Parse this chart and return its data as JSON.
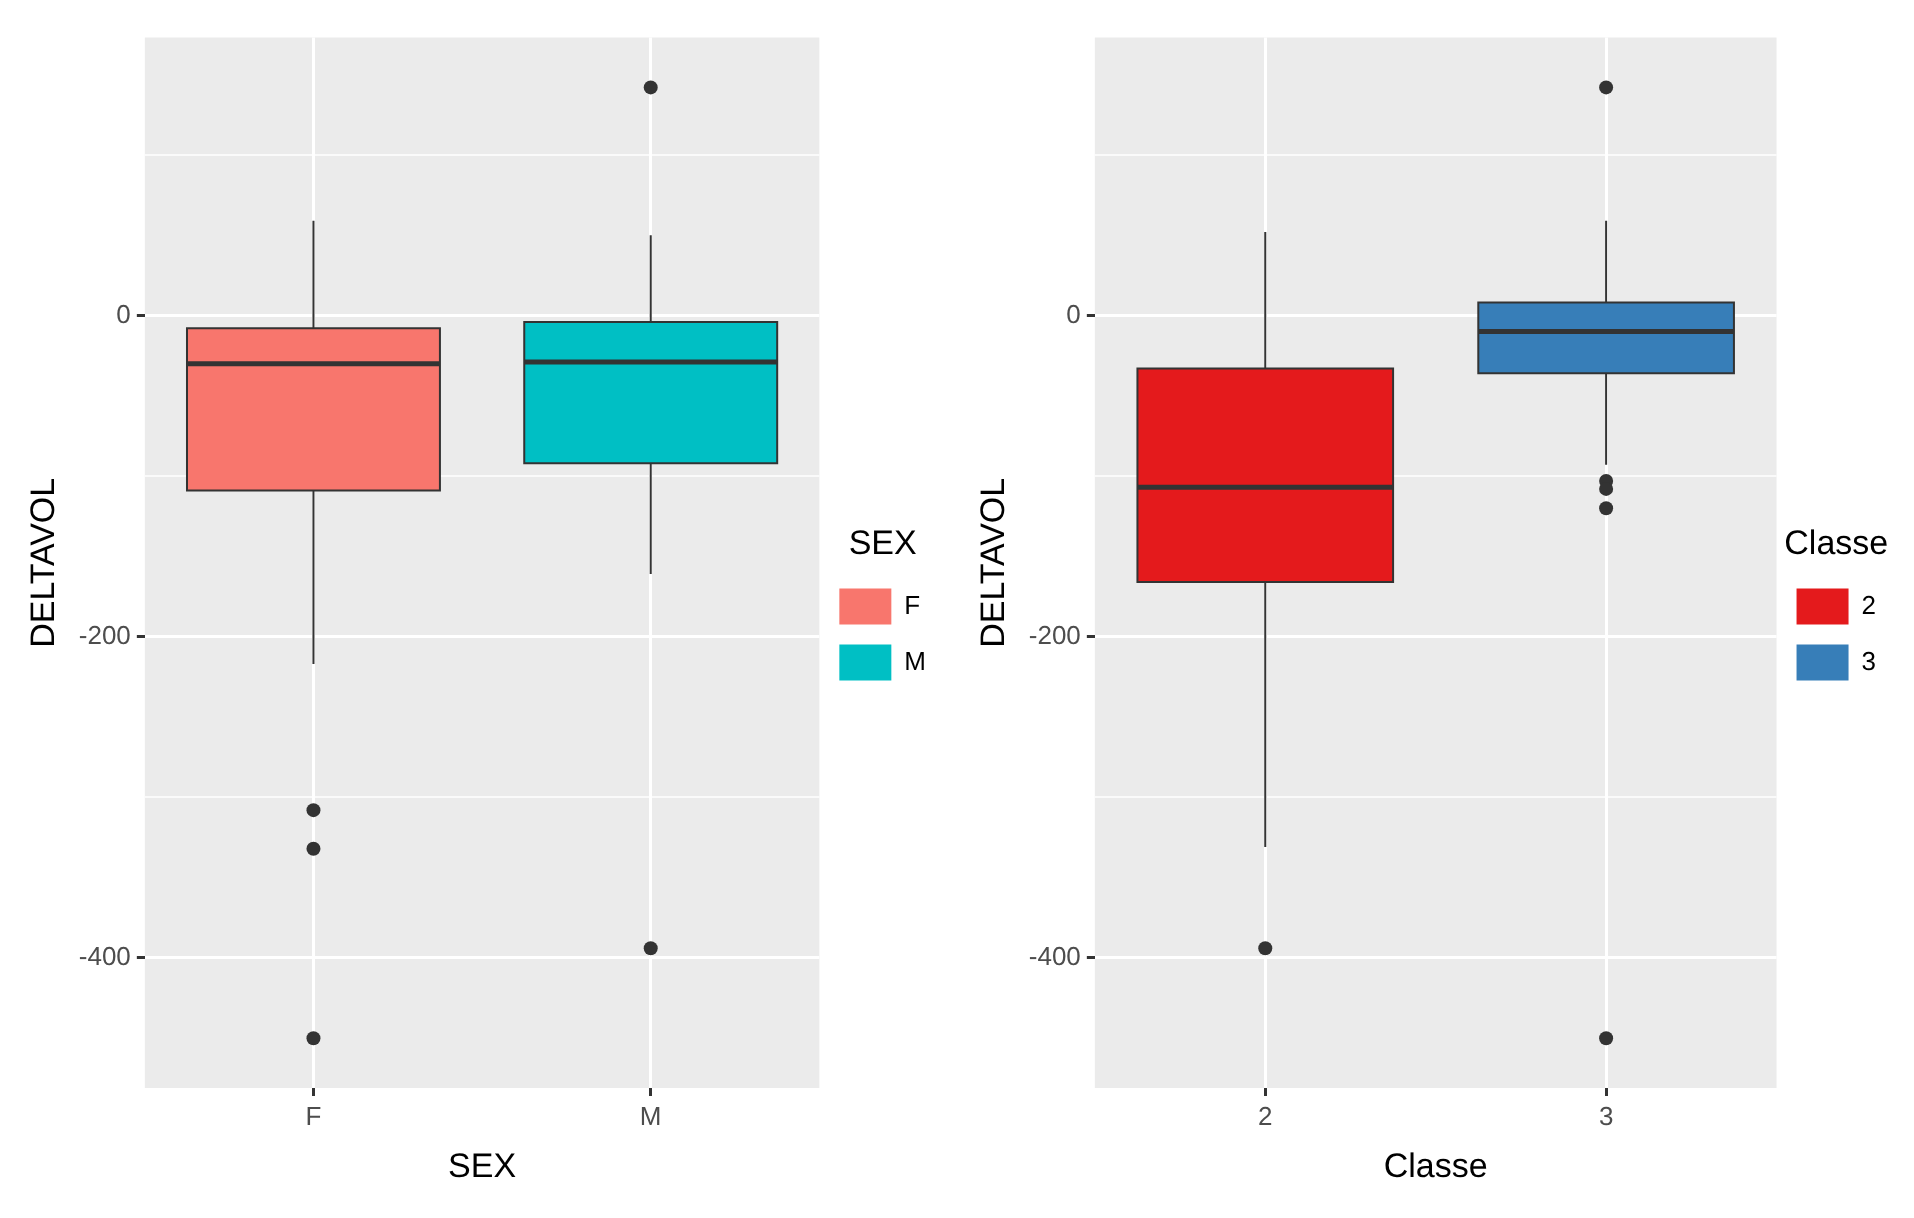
{
  "chart_data": [
    {
      "type": "box",
      "xlabel": "SEX",
      "ylabel": "DELTAVOL",
      "legend_title": "SEX",
      "categories": [
        "F",
        "M"
      ],
      "series": [
        {
          "name": "F",
          "color": "#f8766d",
          "boxes": [
            {
              "low": -217,
              "q1": -109,
              "median": -30,
              "q3": -8,
              "high": 59,
              "outliers": [
                -308,
                -332,
                -450
              ]
            },
            null
          ]
        },
        {
          "name": "M",
          "color": "#00bfc4",
          "boxes": [
            null,
            {
              "low": -161,
              "q1": -92,
              "median": -29,
              "q3": -4,
              "high": 50,
              "outliers": [
                142,
                -394
              ]
            }
          ]
        }
      ],
      "ylim": [
        -481,
        173
      ],
      "yticks": [
        {
          "value": 100,
          "label": null
        },
        0,
        {
          "value": -100,
          "label": null
        },
        -200,
        {
          "value": -300,
          "label": null
        },
        -400
      ],
      "grid": true,
      "legend": "right"
    },
    {
      "type": "box",
      "xlabel": "Classe",
      "ylabel": "DELTAVOL",
      "legend_title": "Classe",
      "categories": [
        "2",
        "3"
      ],
      "series": [
        {
          "name": "2",
          "color": "#e41a1c",
          "boxes": [
            {
              "low": -331,
              "q1": -166,
              "median": -107,
              "q3": -33,
              "high": 52,
              "outliers": [
                -394
              ]
            },
            null
          ]
        },
        {
          "name": "3",
          "color": "#377eb8",
          "boxes": [
            null,
            {
              "low": -93,
              "q1": -36,
              "median": -10,
              "q3": 8,
              "high": 59,
              "outliers": [
                142,
                -103,
                -108,
                -120,
                -450
              ]
            }
          ]
        }
      ],
      "ylim": [
        -481,
        173
      ],
      "yticks": [
        {
          "value": 100,
          "label": null
        },
        0,
        {
          "value": -100,
          "label": null
        },
        -200,
        {
          "value": -300,
          "label": null
        },
        -400
      ],
      "grid": true,
      "legend": "right"
    }
  ]
}
